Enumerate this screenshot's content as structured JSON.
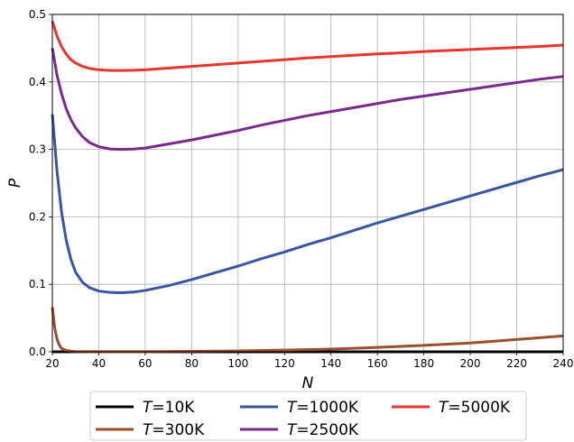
{
  "chart_data": {
    "type": "line",
    "xlabel": "N",
    "ylabel": "P",
    "xlim": [
      20,
      240
    ],
    "ylim": [
      0,
      0.5
    ],
    "xticks": [
      20,
      40,
      60,
      80,
      100,
      120,
      140,
      160,
      180,
      200,
      220,
      240
    ],
    "yticks": [
      "0.0",
      "0.1",
      "0.2",
      "0.3",
      "0.4",
      "0.5"
    ],
    "grid": true,
    "legend_position": "bottom",
    "series": [
      {
        "name_prefix": "T",
        "name_value": "=10K",
        "color": "#000000",
        "x": [
          20,
          40,
          60,
          80,
          100,
          120,
          140,
          160,
          180,
          200,
          220,
          240
        ],
        "y": [
          0,
          0,
          0,
          0,
          0,
          0,
          0,
          0,
          0,
          0,
          0,
          0
        ]
      },
      {
        "name_prefix": "T",
        "name_value": "=300K",
        "color": "#9c4f2c",
        "x": [
          20,
          21,
          22,
          23,
          24,
          26,
          28,
          30,
          35,
          40,
          60,
          80,
          100,
          120,
          140,
          160,
          180,
          200,
          220,
          240
        ],
        "y": [
          0.066,
          0.036,
          0.019,
          0.01,
          0.005,
          0.002,
          0.0008,
          0.0004,
          0.0001,
          0.0001,
          0.0002,
          0.0006,
          0.0013,
          0.0025,
          0.004,
          0.0065,
          0.0095,
          0.013,
          0.0182,
          0.0235
        ]
      },
      {
        "name_prefix": "T",
        "name_value": "=1000K",
        "color": "#3a54a4",
        "x": [
          20,
          22,
          24,
          26,
          28,
          30,
          33,
          36,
          40,
          45,
          50,
          55,
          60,
          70,
          80,
          90,
          100,
          110,
          120,
          130,
          140,
          150,
          160,
          170,
          180,
          190,
          200,
          210,
          220,
          230,
          240
        ],
        "y": [
          0.352,
          0.268,
          0.206,
          0.165,
          0.137,
          0.118,
          0.103,
          0.095,
          0.09,
          0.088,
          0.0875,
          0.0885,
          0.091,
          0.098,
          0.107,
          0.117,
          0.127,
          0.138,
          0.148,
          0.159,
          0.169,
          0.18,
          0.191,
          0.201,
          0.211,
          0.221,
          0.231,
          0.241,
          0.251,
          0.261,
          0.27
        ]
      },
      {
        "name_prefix": "T",
        "name_value": "=2500K",
        "color": "#7a2a8c",
        "x": [
          20,
          22,
          24,
          26,
          28,
          30,
          33,
          36,
          40,
          45,
          50,
          55,
          60,
          70,
          80,
          90,
          100,
          110,
          120,
          130,
          140,
          150,
          160,
          170,
          180,
          190,
          200,
          210,
          220,
          230,
          240
        ],
        "y": [
          0.45,
          0.41,
          0.382,
          0.36,
          0.344,
          0.332,
          0.319,
          0.31,
          0.304,
          0.3005,
          0.3,
          0.3005,
          0.302,
          0.308,
          0.314,
          0.321,
          0.328,
          0.336,
          0.343,
          0.35,
          0.356,
          0.362,
          0.368,
          0.374,
          0.379,
          0.384,
          0.389,
          0.394,
          0.399,
          0.404,
          0.408
        ]
      },
      {
        "name_prefix": "T",
        "name_value": "=5000K",
        "color": "#e8352d",
        "x": [
          20,
          22,
          24,
          26,
          28,
          30,
          33,
          36,
          40,
          45,
          50,
          55,
          60,
          70,
          80,
          90,
          100,
          110,
          120,
          130,
          140,
          150,
          160,
          170,
          180,
          190,
          200,
          210,
          220,
          230,
          240
        ],
        "y": [
          0.49,
          0.468,
          0.452,
          0.441,
          0.433,
          0.428,
          0.423,
          0.42,
          0.418,
          0.417,
          0.417,
          0.4172,
          0.418,
          0.4205,
          0.423,
          0.4255,
          0.428,
          0.4305,
          0.433,
          0.4355,
          0.4375,
          0.4395,
          0.4415,
          0.443,
          0.445,
          0.4465,
          0.448,
          0.4495,
          0.451,
          0.4525,
          0.4545
        ]
      }
    ]
  }
}
